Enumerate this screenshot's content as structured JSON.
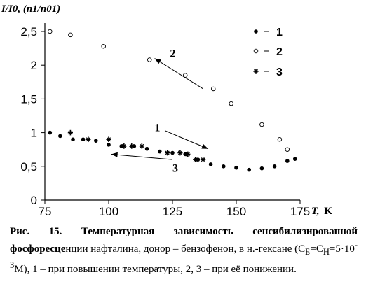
{
  "chart_data": {
    "type": "scatter",
    "title": "",
    "ylabel": "I/I0, (n1/n01)",
    "xlabel_value": "T,",
    "xlabel_unit": "K",
    "xlim": [
      75,
      175
    ],
    "ylim": [
      0,
      2.5
    ],
    "xticks": [
      "75",
      "100",
      "125",
      "150",
      "175"
    ],
    "yticks": [
      "0",
      "0,5",
      "1",
      "1,5",
      "2",
      "2,5"
    ],
    "legend_position": "top-right",
    "series": [
      {
        "name": "1",
        "marker": "filled-circle",
        "x": [
          77,
          81,
          86,
          90,
          95,
          100,
          105,
          110,
          115,
          120,
          125,
          130,
          135,
          140,
          145,
          150,
          155,
          160,
          165,
          170,
          173
        ],
        "y": [
          1.0,
          0.95,
          0.9,
          0.9,
          0.88,
          0.82,
          0.8,
          0.8,
          0.76,
          0.72,
          0.7,
          0.68,
          0.6,
          0.53,
          0.5,
          0.48,
          0.45,
          0.47,
          0.5,
          0.58,
          0.61
        ]
      },
      {
        "name": "2",
        "marker": "open-circle",
        "x": [
          77,
          85,
          98,
          116,
          130,
          141,
          148,
          160,
          167,
          170
        ],
        "y": [
          2.5,
          2.45,
          2.28,
          2.08,
          1.85,
          1.65,
          1.43,
          1.12,
          0.9,
          0.75
        ]
      },
      {
        "name": "3",
        "marker": "asterisk",
        "x": [
          85,
          92,
          100,
          106,
          109,
          113,
          123,
          128,
          131,
          134,
          137
        ],
        "y": [
          1.0,
          0.9,
          0.9,
          0.8,
          0.8,
          0.8,
          0.7,
          0.7,
          0.68,
          0.6,
          0.6
        ]
      }
    ],
    "annotations": [
      {
        "text": "2",
        "text_at": [
          124,
          2.12
        ],
        "arrow_from": [
          137,
          1.65
        ],
        "arrow_to": [
          118,
          2.1
        ]
      },
      {
        "text": "1",
        "text_at": [
          118,
          1.02
        ],
        "arrow_from": [
          122,
          1.03
        ],
        "arrow_to": [
          139,
          0.76
        ]
      },
      {
        "text": "3",
        "text_at": [
          125,
          0.42
        ],
        "arrow_from": [
          125,
          0.6
        ],
        "arrow_to": [
          101,
          0.68
        ]
      }
    ]
  },
  "caption": {
    "bold_prefix": "фосфоресце",
    "line1": "Рис. 15. Температурная зависимость сенсибилизированной",
    "rest": "нции нафталина, донор – бензофенон, в н.-гексане (C",
    "sub_b": "Б",
    "eq": "=C",
    "sub_h": "Н",
    "conc": "=5·10",
    "exp": "-3",
    "tail": "M), 1 – при повышении температуры, 2, 3 – при её понижении."
  }
}
